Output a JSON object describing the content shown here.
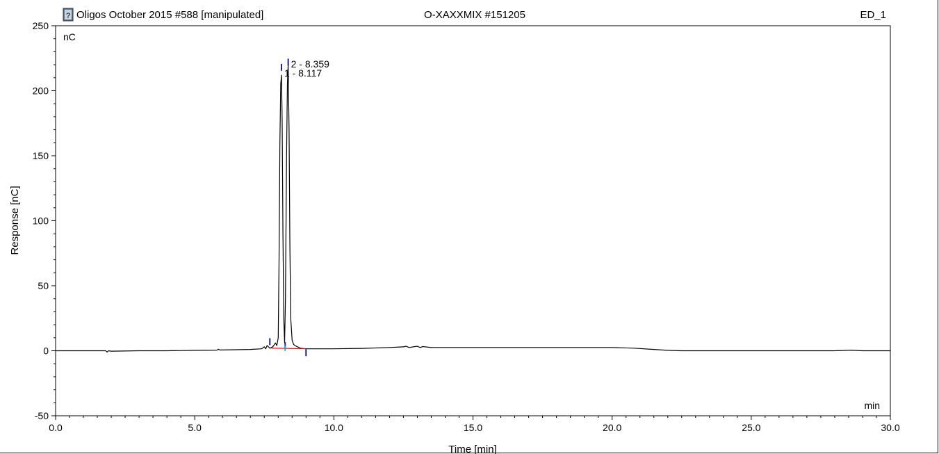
{
  "header": {
    "title_left": "Oligos October 2015 #588 [manipulated]",
    "title_center": "O-XAXXMIX #151205",
    "title_right": "ED_1",
    "doc_icon": "document-question-icon"
  },
  "chart_data": {
    "type": "line",
    "xlabel": "Time [min]",
    "ylabel": "Response [nC]",
    "y_unit_label": "nC",
    "x_unit_label": "min",
    "xlim": [
      0,
      30
    ],
    "ylim": [
      -50,
      250
    ],
    "x_ticks": [
      0,
      5,
      10,
      15,
      20,
      25,
      30
    ],
    "x_tick_labels": [
      "0.0",
      "5.0",
      "10.0",
      "15.0",
      "20.0",
      "25.0",
      "30.0"
    ],
    "y_ticks": [
      -50,
      0,
      50,
      100,
      150,
      200,
      250
    ],
    "y_tick_labels": [
      "-50",
      "0",
      "50",
      "100",
      "150",
      "200",
      "250"
    ],
    "grid": false,
    "series": [
      {
        "color": "#000000",
        "x": [
          0.0,
          1.8,
          1.85,
          1.9,
          2.0,
          3.0,
          4.0,
          5.0,
          5.8,
          5.85,
          5.9,
          6.5,
          7.0,
          7.4,
          7.5,
          7.55,
          7.6,
          7.7,
          7.8,
          7.9,
          7.95,
          8.0,
          8.03,
          8.06,
          8.09,
          8.117,
          8.14,
          8.17,
          8.2,
          8.23,
          8.26,
          8.3,
          8.33,
          8.359,
          8.39,
          8.42,
          8.45,
          8.5,
          8.55,
          8.6,
          8.7,
          8.8,
          9.0,
          9.5,
          10.0,
          11.0,
          12.0,
          12.5,
          12.6,
          12.7,
          13.0,
          13.1,
          13.2,
          13.5,
          14.0,
          15.0,
          16.0,
          17.0,
          18.0,
          19.0,
          20.0,
          20.8,
          21.5,
          22.0,
          22.5,
          23.0,
          24.0,
          25.0,
          26.0,
          27.0,
          28.0,
          28.6,
          29.0,
          30.0
        ],
        "y": [
          0.0,
          0.0,
          -1.0,
          0.0,
          -0.3,
          0.0,
          0.0,
          0.3,
          0.5,
          1.2,
          0.6,
          0.8,
          1.0,
          1.5,
          3.0,
          1.5,
          4.0,
          2.0,
          3.0,
          6.0,
          4.0,
          10.0,
          70.0,
          160.0,
          205.0,
          212.0,
          180.0,
          90.0,
          25.0,
          6.0,
          40.0,
          150.0,
          205.0,
          220.0,
          170.0,
          80.0,
          25.0,
          8.0,
          5.0,
          4.0,
          3.0,
          2.0,
          1.5,
          1.5,
          1.5,
          1.8,
          2.5,
          3.0,
          3.5,
          2.5,
          3.5,
          2.5,
          3.2,
          2.5,
          2.5,
          2.5,
          2.5,
          2.5,
          2.5,
          2.5,
          2.5,
          2.0,
          1.0,
          0.3,
          0.0,
          0.0,
          0.0,
          0.0,
          0.0,
          0.0,
          0.0,
          0.5,
          0.0,
          0.0
        ]
      }
    ],
    "baseline": {
      "color": "#ff0000",
      "x": [
        7.75,
        9.0
      ],
      "y": [
        2.0,
        1.5
      ]
    },
    "peak_labels": [
      {
        "text": "2 - 8.359",
        "x": 8.359,
        "y": 220.0
      },
      {
        "text": "1 - 8.117",
        "x": 8.117,
        "y": 213.0
      }
    ],
    "markers_dark_blue": [
      {
        "x": 7.7,
        "y": 7.0
      },
      {
        "x": 8.117,
        "y": 218.0
      },
      {
        "x": 8.359,
        "y": 222.0
      },
      {
        "x": 8.25,
        "y": 4.0
      },
      {
        "x": 9.0,
        "y": -1.5
      }
    ],
    "markers_cyan": [
      {
        "x": 8.25,
        "y": 2.0
      }
    ],
    "colors": {
      "trace": "#000000",
      "baseline": "#ff0000",
      "marker_dark": "#1f1f9c",
      "marker_cyan": "#00b4ff",
      "icon_fill": "#5a7a9a"
    }
  }
}
